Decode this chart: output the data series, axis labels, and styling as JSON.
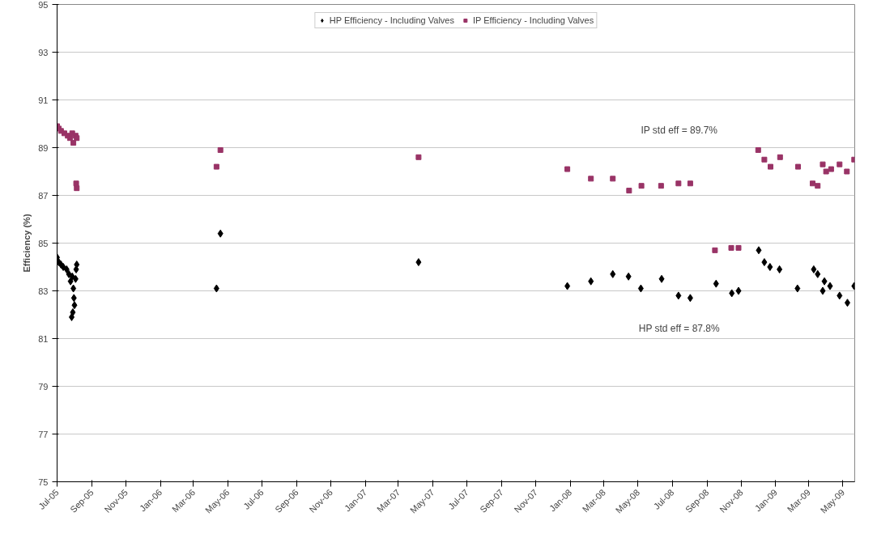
{
  "chart_data": {
    "type": "scatter",
    "ylabel": "Efficiency (%)",
    "xlim": [
      "2005-07-01",
      "2009-05-22"
    ],
    "ylim": [
      75,
      95
    ],
    "yticks": [
      75,
      77,
      79,
      81,
      83,
      85,
      87,
      89,
      91,
      93,
      95
    ],
    "xticks": [
      {
        "value": "2005-07-01",
        "label": "Jul-05"
      },
      {
        "value": "2005-09-01",
        "label": "Sep-05"
      },
      {
        "value": "2005-11-01",
        "label": "Nov-05"
      },
      {
        "value": "2006-01-01",
        "label": "Jan-06"
      },
      {
        "value": "2006-03-01",
        "label": "Mar-06"
      },
      {
        "value": "2006-05-01",
        "label": "May-06"
      },
      {
        "value": "2006-07-01",
        "label": "Jul-06"
      },
      {
        "value": "2006-09-01",
        "label": "Sep-06"
      },
      {
        "value": "2006-11-01",
        "label": "Nov-06"
      },
      {
        "value": "2007-01-01",
        "label": "Jan-07"
      },
      {
        "value": "2007-03-01",
        "label": "Mar-07"
      },
      {
        "value": "2007-05-01",
        "label": "May-07"
      },
      {
        "value": "2007-07-01",
        "label": "Jul-07"
      },
      {
        "value": "2007-09-01",
        "label": "Sep-07"
      },
      {
        "value": "2007-11-01",
        "label": "Nov-07"
      },
      {
        "value": "2008-01-01",
        "label": "Jan-08"
      },
      {
        "value": "2008-03-01",
        "label": "Mar-08"
      },
      {
        "value": "2008-05-01",
        "label": "May-08"
      },
      {
        "value": "2008-07-01",
        "label": "Jul-08"
      },
      {
        "value": "2008-09-01",
        "label": "Sep-08"
      },
      {
        "value": "2008-11-01",
        "label": "Nov-08"
      },
      {
        "value": "2009-01-01",
        "label": "Jan-09"
      },
      {
        "value": "2009-03-01",
        "label": "Mar-09"
      },
      {
        "value": "2009-05-01",
        "label": "May-09"
      }
    ],
    "grid": "y",
    "legend": "top",
    "annotations": [
      "IP std eff = 89.7%",
      "HP std eff = 87.8%"
    ],
    "series": [
      {
        "name": "HP Efficiency - Including Valves",
        "color": "#000000",
        "marker": "diamond",
        "x": [
          "2005-07-01",
          "2005-07-04",
          "2005-07-08",
          "2005-07-12",
          "2005-07-18",
          "2005-07-22",
          "2005-07-25",
          "2005-07-28",
          "2005-07-30",
          "2005-07-31",
          "2005-08-01",
          "2005-07-27",
          "2005-07-29",
          "2005-08-03",
          "2005-08-05",
          "2005-08-04",
          "2006-04-11",
          "2006-04-18",
          "2007-04-06",
          "2007-12-27",
          "2008-02-07",
          "2008-03-17",
          "2008-04-14",
          "2008-05-06",
          "2008-06-12",
          "2008-07-12",
          "2008-08-02",
          "2008-09-17",
          "2008-10-15",
          "2008-10-27",
          "2008-12-02",
          "2008-12-12",
          "2008-12-22",
          "2009-01-08",
          "2009-02-09",
          "2009-03-10",
          "2009-03-17",
          "2009-03-26",
          "2009-03-29",
          "2009-04-08",
          "2009-04-25",
          "2009-05-09",
          "2009-05-21"
        ],
        "values": [
          84.4,
          84.2,
          84.1,
          84.0,
          83.9,
          83.7,
          83.4,
          83.6,
          83.1,
          82.7,
          82.4,
          81.9,
          82.1,
          83.5,
          84.1,
          83.9,
          83.1,
          85.4,
          84.2,
          83.2,
          83.4,
          83.7,
          83.6,
          83.1,
          83.5,
          82.8,
          82.7,
          83.3,
          82.9,
          83.0,
          84.7,
          84.2,
          84.0,
          83.9,
          83.1,
          83.9,
          83.7,
          83.0,
          83.4,
          83.2,
          82.8,
          82.5,
          83.2
        ]
      },
      {
        "name": "IP Efficiency - Including Valves",
        "color": "#993366",
        "marker": "square",
        "x": [
          "2005-07-01",
          "2005-07-04",
          "2005-07-08",
          "2005-07-14",
          "2005-07-20",
          "2005-07-24",
          "2005-07-28",
          "2005-07-30",
          "2005-08-03",
          "2005-08-05",
          "2005-08-04",
          "2005-08-05",
          "2006-04-11",
          "2006-04-18",
          "2007-04-06",
          "2007-12-27",
          "2008-02-07",
          "2008-03-17",
          "2008-04-15",
          "2008-05-07",
          "2008-06-11",
          "2008-07-12",
          "2008-08-02",
          "2008-09-15",
          "2008-10-14",
          "2008-10-27",
          "2008-12-01",
          "2008-12-12",
          "2008-12-23",
          "2009-01-09",
          "2009-02-10",
          "2009-03-08",
          "2009-03-17",
          "2009-03-26",
          "2009-04-01",
          "2009-04-10",
          "2009-04-25",
          "2009-05-08",
          "2009-05-21"
        ],
        "values": [
          89.9,
          89.8,
          89.7,
          89.6,
          89.5,
          89.4,
          89.6,
          89.2,
          89.5,
          89.4,
          87.5,
          87.3,
          88.2,
          88.9,
          88.6,
          88.1,
          87.7,
          87.7,
          87.2,
          87.4,
          87.4,
          87.5,
          87.5,
          84.7,
          84.8,
          84.8,
          88.9,
          88.5,
          88.2,
          88.6,
          88.2,
          87.5,
          87.4,
          88.3,
          88.0,
          88.1,
          88.3,
          88.0,
          88.5
        ]
      }
    ]
  }
}
